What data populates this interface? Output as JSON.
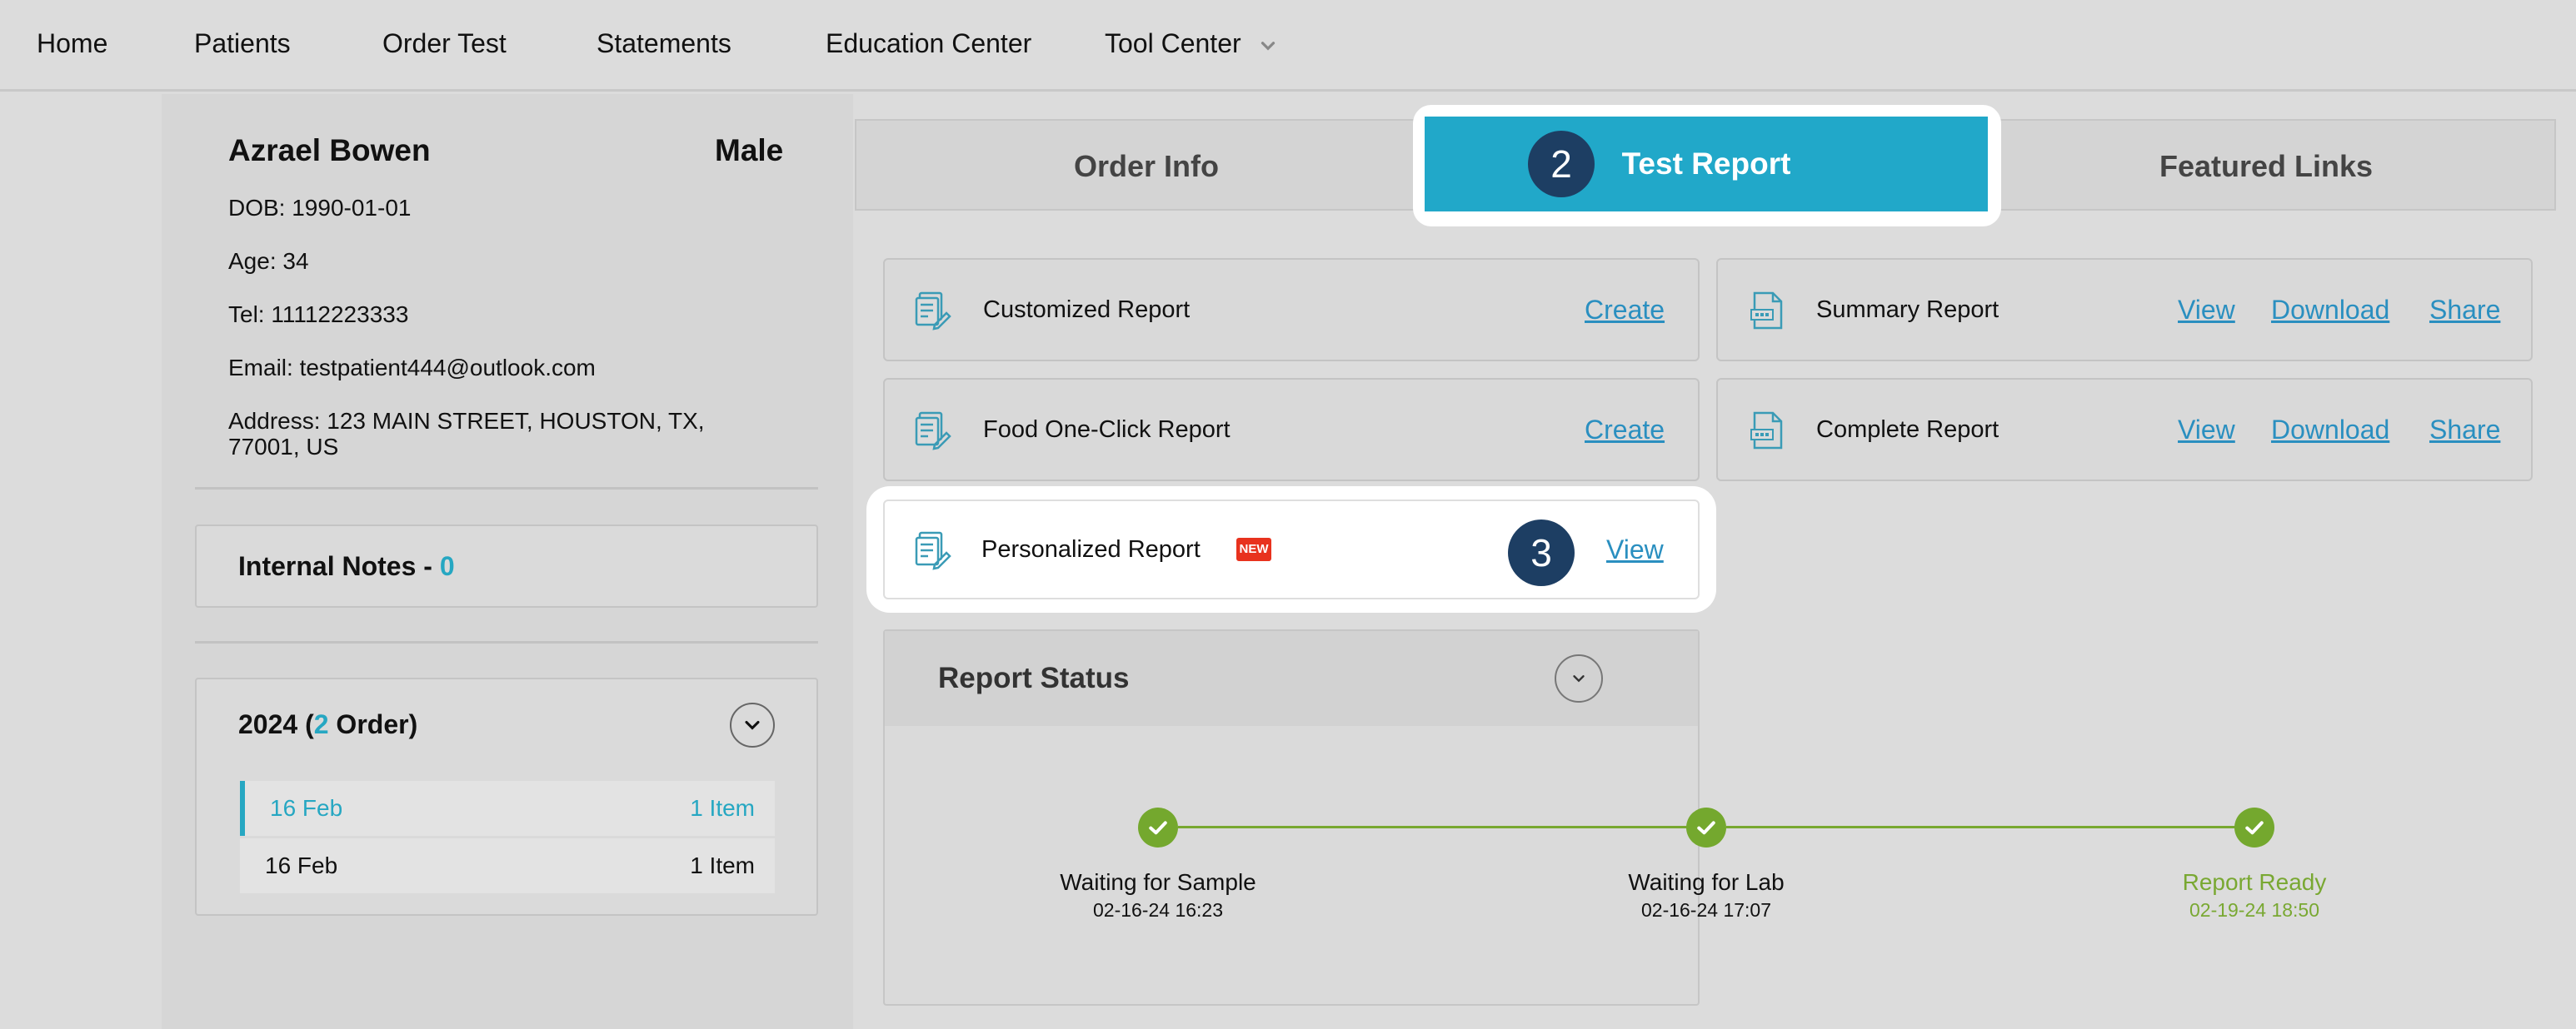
{
  "nav": {
    "items": [
      "Home",
      "Patients",
      "Order Test",
      "Statements",
      "Education Center",
      "Tool Center"
    ]
  },
  "patient": {
    "name": "Azrael Bowen",
    "gender": "Male",
    "dob": "DOB: 1990-01-01",
    "age": "Age: 34",
    "tel": "Tel: 11112223333",
    "email": "Email: testpatient444@outlook.com",
    "address_line1": "Address: 123 MAIN STREET, HOUSTON, TX,",
    "address_line2": "77001, US"
  },
  "notes": {
    "label": "Internal Notes - ",
    "count": "0"
  },
  "orders": {
    "year": "2024",
    "open_paren": " (",
    "count": "2",
    "suffix": " Order)",
    "rows": [
      {
        "date": "16 Feb",
        "items": "1 Item"
      },
      {
        "date": "16 Feb",
        "items": "1 Item"
      }
    ]
  },
  "tabs": {
    "order_info": "Order Info",
    "test_report": "Test Report",
    "featured_links": "Featured Links"
  },
  "steps": {
    "tab_step": "2",
    "personal_step": "3"
  },
  "reports": {
    "customized": {
      "title": "Customized Report",
      "action": "Create"
    },
    "food": {
      "title": "Food One-Click Report",
      "action": "Create"
    },
    "summary": {
      "title": "Summary Report",
      "view": "View",
      "download": "Download",
      "share": "Share"
    },
    "complete": {
      "title": "Complete Report",
      "view": "View",
      "download": "Download",
      "share": "Share"
    },
    "personalized": {
      "title": "Personalized Report",
      "badge": "NEW",
      "action": "View"
    }
  },
  "status": {
    "title": "Report Status",
    "steps": [
      {
        "label": "Waiting for Sample",
        "time": "02-16-24 16:23"
      },
      {
        "label": "Waiting for Lab",
        "time": "02-16-24 17:07"
      },
      {
        "label": "Report Ready",
        "time": "02-19-24 18:50"
      }
    ]
  },
  "colors": {
    "accent": "#26a7c2",
    "active_tab": "#21a8c9",
    "step_badge": "#1d3e63",
    "success": "#74a82e",
    "link": "#2a8fc0",
    "new_badge": "#e8321e"
  },
  "icons": {
    "report": "report-document-icon",
    "pdf": "pdf-document-icon",
    "check": "check-icon",
    "chevron": "chevron-down-icon"
  }
}
